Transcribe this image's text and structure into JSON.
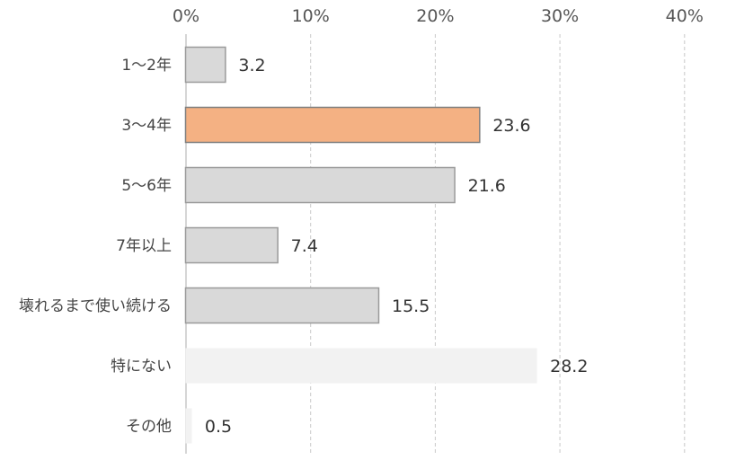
{
  "chart_data": {
    "type": "bar",
    "orientation": "horizontal",
    "title": "",
    "xlabel": "",
    "ylabel": "",
    "xlim": [
      0,
      40
    ],
    "x_ticks": [
      "0%",
      "10%",
      "20%",
      "30%",
      "40%"
    ],
    "x_tick_values": [
      0,
      10,
      20,
      30,
      40
    ],
    "x_axis_position": "top",
    "grid": true,
    "legend": "none",
    "categories": [
      "1～2年",
      "3～4年",
      "5～6年",
      "7年以上",
      "壊れるまで使い続ける",
      "特にない",
      "その他"
    ],
    "values": [
      3.2,
      23.6,
      21.6,
      7.4,
      15.5,
      28.2,
      0.5
    ],
    "value_labels": [
      "3.2",
      "23.6",
      "21.6",
      "7.4",
      "15.5",
      "28.2",
      "0.5"
    ],
    "bar_fill": [
      "#d9d9d9",
      "#f4b183",
      "#d9d9d9",
      "#d9d9d9",
      "#d9d9d9",
      "#f2f2f2",
      "#f2f2f2"
    ],
    "bar_stroke": [
      "#9a9a9a",
      "#7f7f7f",
      "#9a9a9a",
      "#9a9a9a",
      "#9a9a9a",
      "none",
      "none"
    ]
  }
}
